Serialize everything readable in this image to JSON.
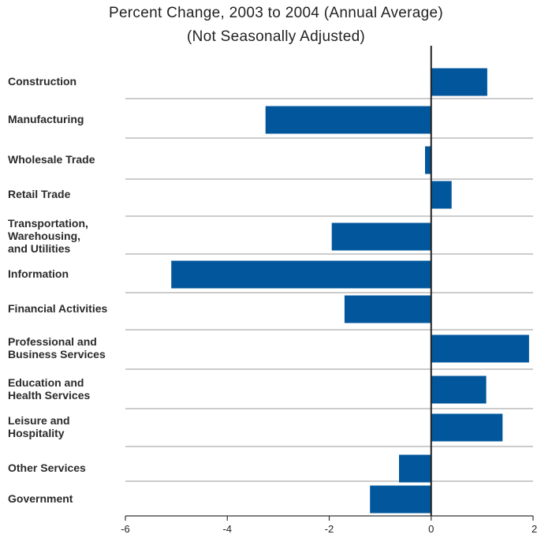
{
  "chart_data": {
    "type": "bar",
    "orientation": "horizontal",
    "title": "Percent Change, 2003 to 2004 (Annual Average)",
    "subtitle": "(Not Seasonally Adjusted)",
    "categories": [
      "Construction",
      "Manufacturing",
      "Wholesale Trade",
      "Retail Trade",
      "Transportation, Warehousing, and Utilities",
      "Information",
      "Financial Activities",
      "Professional and Business Services",
      "Education and Health Services",
      "Leisure and Hospitality",
      "Other Services",
      "Government"
    ],
    "category_label_lines": [
      [
        "Construction"
      ],
      [
        "Manufacturing"
      ],
      [
        "Wholesale Trade"
      ],
      [
        "Retail Trade"
      ],
      [
        "Transportation,",
        "Warehousing,",
        "and Utilities"
      ],
      [
        "Information"
      ],
      [
        "Financial Activities"
      ],
      [
        "Professional and",
        "Business Services"
      ],
      [
        "Education and",
        "Health Services"
      ],
      [
        "Leisure and",
        "Hospitality"
      ],
      [
        "Other Services"
      ],
      [
        "Government"
      ]
    ],
    "values": [
      1.1,
      -3.25,
      -0.12,
      0.4,
      -1.95,
      -5.1,
      -1.7,
      1.92,
      1.08,
      1.4,
      -0.63,
      -1.2
    ],
    "xlim": [
      -6,
      2
    ],
    "xticks": [
      -6,
      -4,
      -2,
      0,
      2
    ],
    "xtick_labels": [
      "-6",
      "-4",
      "-2",
      "0",
      "2"
    ],
    "xlabel": "",
    "ylabel": "",
    "grid": "horizontal separators between categories",
    "legend": "none",
    "bar_color": "#02579c"
  }
}
